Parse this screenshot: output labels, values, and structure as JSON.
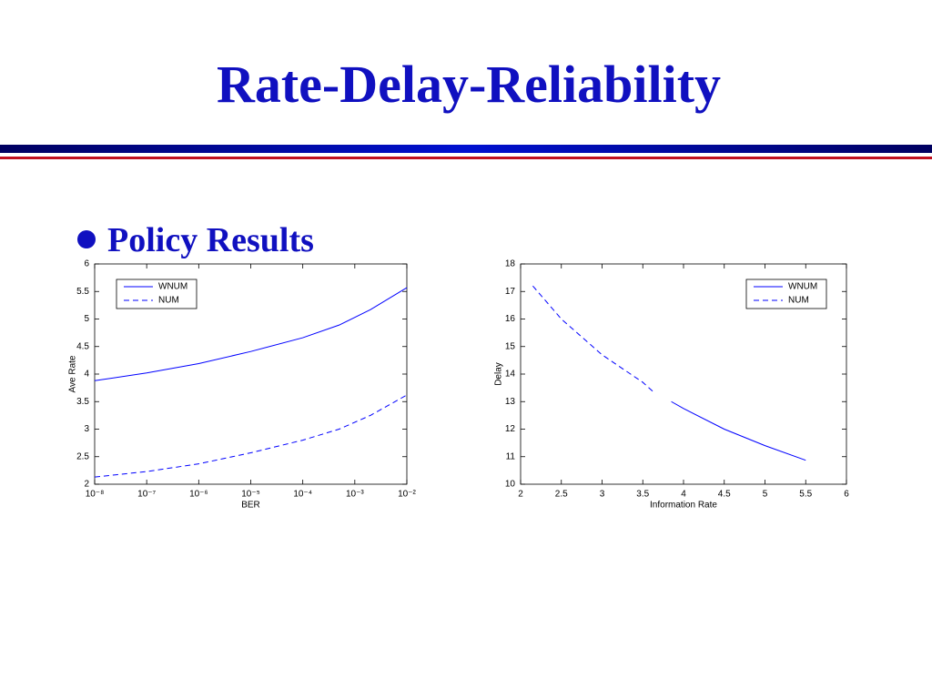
{
  "title": "Rate-Delay-Reliability",
  "bullet": "Policy Results",
  "chart_data": [
    {
      "type": "line",
      "xlabel": "BER",
      "ylabel": "Ave Rate",
      "xscale": "log",
      "legend": "upper left",
      "x": [
        1e-08,
        1e-07,
        1e-06,
        1e-05,
        0.0001,
        0.0005,
        0.002,
        0.01
      ],
      "series": [
        {
          "name": "WNUM",
          "color": "#0000ff",
          "style": "solid",
          "values": [
            3.88,
            4.02,
            4.19,
            4.41,
            4.66,
            4.89,
            5.17,
            5.57
          ]
        },
        {
          "name": "NUM",
          "color": "#0000ff",
          "style": "dashed",
          "values": [
            2.13,
            2.23,
            2.37,
            2.57,
            2.8,
            3.0,
            3.25,
            3.62
          ]
        }
      ],
      "xlim": [
        1e-08,
        0.01
      ],
      "xticks": [
        {
          "value": 1e-08,
          "label": "10⁻⁸"
        },
        {
          "value": 1e-07,
          "label": "10⁻⁷"
        },
        {
          "value": 1e-06,
          "label": "10⁻⁶"
        },
        {
          "value": 1e-05,
          "label": "10⁻⁵"
        },
        {
          "value": 0.0001,
          "label": "10⁻⁴"
        },
        {
          "value": 0.001,
          "label": "10⁻³"
        },
        {
          "value": 0.01,
          "label": "10⁻²"
        }
      ],
      "ylim": [
        2,
        6
      ],
      "yticks": [
        2,
        2.5,
        3,
        3.5,
        4,
        4.5,
        5,
        5.5,
        6
      ]
    },
    {
      "type": "line",
      "xlabel": "Information Rate",
      "ylabel": "Delay",
      "xscale": "linear",
      "legend": "upper right",
      "x": [
        2.15,
        2.5,
        3,
        3.5,
        3.65,
        3.85,
        4,
        4.5,
        5,
        5.5
      ],
      "series": [
        {
          "name": "WNUM",
          "color": "#0000ff",
          "style": "solid",
          "values": [
            null,
            null,
            null,
            null,
            null,
            13.0,
            12.75,
            12.0,
            11.4,
            10.87
          ]
        },
        {
          "name": "NUM",
          "color": "#0000ff",
          "style": "dashed",
          "values": [
            17.2,
            16.0,
            14.7,
            13.7,
            13.3,
            null,
            null,
            null,
            null,
            null
          ]
        }
      ],
      "xlim": [
        2,
        6
      ],
      "xticks": [
        2,
        2.5,
        3,
        3.5,
        4,
        4.5,
        5,
        5.5,
        6
      ],
      "ylim": [
        10,
        18
      ],
      "yticks": [
        10,
        11,
        12,
        13,
        14,
        15,
        16,
        17,
        18
      ]
    }
  ]
}
